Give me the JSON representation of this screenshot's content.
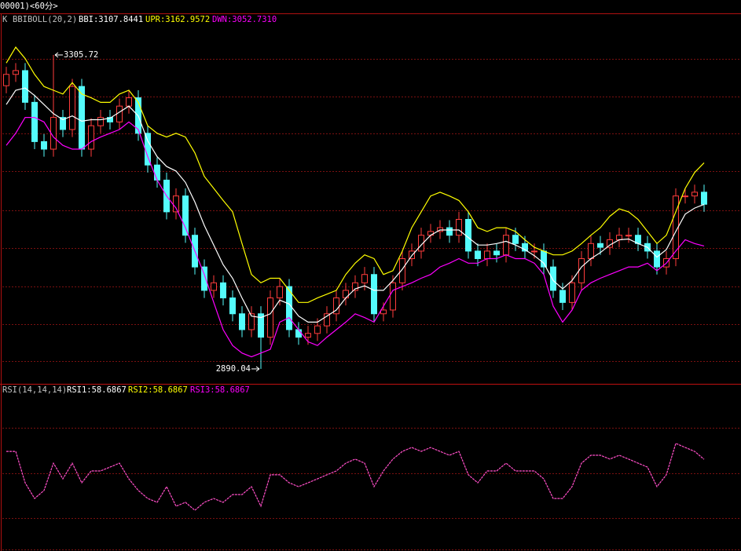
{
  "header": {
    "title": "00001)<60分>"
  },
  "chart_data": [
    {
      "type": "candlestick",
      "legend": [
        "K",
        "BBIBOLL(20,2)"
      ],
      "up_color": "#ff3c3c",
      "down_color": "#54fcfc",
      "open": [
        3265,
        3280,
        3285,
        3243,
        3191,
        3181,
        3223,
        3207,
        3264,
        3181,
        3212,
        3223,
        3217,
        3238,
        3249,
        3202,
        3160,
        3140,
        3098,
        3119,
        3067,
        3025,
        2994,
        3004,
        2984,
        2963,
        2942,
        2963,
        2932,
        2984,
        2999,
        2942,
        2932,
        2937,
        2947,
        2963,
        2984,
        2994,
        3004,
        3015,
        2963,
        2968,
        3004,
        3036,
        3046,
        3067,
        3072,
        3077,
        3067,
        3088,
        3046,
        3036,
        3046,
        3041,
        3067,
        3056,
        3046,
        3046,
        3025,
        2994,
        2978,
        3004,
        3036,
        3056,
        3051,
        3061,
        3067,
        3067,
        3056,
        3046,
        3025,
        3036,
        3119,
        3119,
        3124
      ],
      "high": [
        3290,
        3295,
        3295,
        3253,
        3201,
        3305.72,
        3233,
        3274,
        3274,
        3222,
        3233,
        3233,
        3248,
        3259,
        3259,
        3212,
        3170,
        3150,
        3129,
        3129,
        3077,
        3035,
        3014,
        3014,
        2994,
        2973,
        2973,
        2973,
        2994,
        3009,
        3009,
        2952,
        2947,
        2957,
        2973,
        2994,
        3004,
        3014,
        3025,
        3025,
        2978,
        3014,
        3046,
        3056,
        3077,
        3082,
        3087,
        3087,
        3098,
        3098,
        3056,
        3056,
        3056,
        3077,
        3077,
        3066,
        3056,
        3056,
        3035,
        3004,
        3014,
        3046,
        3066,
        3066,
        3071,
        3077,
        3077,
        3077,
        3066,
        3056,
        3046,
        3129,
        3129,
        3134,
        3134
      ],
      "low": [
        3255,
        3270,
        3233,
        3181,
        3171,
        3171,
        3197,
        3197,
        3171,
        3171,
        3202,
        3207,
        3207,
        3228,
        3192,
        3150,
        3130,
        3088,
        3088,
        3057,
        3015,
        2984,
        2984,
        2974,
        2953,
        2932,
        2932,
        2890.04,
        2922,
        2974,
        2932,
        2922,
        2922,
        2927,
        2937,
        2953,
        2974,
        2984,
        2994,
        2953,
        2953,
        2958,
        2994,
        3026,
        3036,
        3057,
        3062,
        3057,
        3057,
        3036,
        3026,
        3026,
        3031,
        3031,
        3046,
        3036,
        3036,
        3015,
        2984,
        2968,
        2968,
        2994,
        3026,
        3041,
        3041,
        3051,
        3057,
        3046,
        3036,
        3015,
        3015,
        3026,
        3109,
        3109,
        3098
      ],
      "close": [
        3280,
        3285,
        3243,
        3191,
        3181,
        3223,
        3207,
        3264,
        3181,
        3212,
        3223,
        3217,
        3238,
        3249,
        3202,
        3160,
        3140,
        3098,
        3119,
        3067,
        3025,
        2994,
        3004,
        2984,
        2963,
        2942,
        2963,
        2932,
        2984,
        2999,
        2942,
        2932,
        2937,
        2947,
        2963,
        2984,
        2994,
        3004,
        3015,
        2963,
        2968,
        3004,
        3036,
        3046,
        3067,
        3072,
        3077,
        3067,
        3088,
        3046,
        3036,
        3046,
        3041,
        3067,
        3056,
        3046,
        3046,
        3025,
        2994,
        2978,
        3004,
        3036,
        3056,
        3051,
        3061,
        3067,
        3067,
        3056,
        3046,
        3025,
        3036,
        3119,
        3119,
        3124,
        3108
      ],
      "series": [
        {
          "name": "BBI:",
          "color": "#ffffff",
          "values": [
            3240,
            3259,
            3262,
            3252,
            3240,
            3228,
            3220,
            3225,
            3218,
            3220,
            3220,
            3222,
            3230,
            3238,
            3225,
            3192,
            3171,
            3158,
            3152,
            3137,
            3111,
            3080,
            3054,
            3028,
            3010,
            2984,
            2960,
            2958,
            2963,
            2981,
            2976,
            2960,
            2952,
            2952,
            2960,
            2968,
            2984,
            2996,
            3000,
            2994,
            2994,
            3007,
            3022,
            3040,
            3054,
            3067,
            3074,
            3074,
            3074,
            3064,
            3054,
            3054,
            3056,
            3059,
            3054,
            3048,
            3040,
            3030,
            3007,
            2996,
            3007,
            3025,
            3036,
            3044,
            3054,
            3061,
            3062,
            3056,
            3051,
            3038,
            3048,
            3072,
            3095,
            3103,
            3107.8441
          ]
        },
        {
          "name": "UPR:",
          "color": "#ffff00",
          "values": [
            3295,
            3316,
            3301,
            3280,
            3264,
            3259,
            3254,
            3269,
            3254,
            3249,
            3243,
            3243,
            3254,
            3259,
            3243,
            3212,
            3202,
            3197,
            3202,
            3197,
            3176,
            3145,
            3129,
            3113,
            3098,
            3056,
            3015,
            3004,
            3010,
            3010,
            2994,
            2978,
            2978,
            2984,
            2989,
            2994,
            3015,
            3030,
            3041,
            3036,
            3015,
            3020,
            3046,
            3077,
            3098,
            3119,
            3124,
            3119,
            3113,
            3098,
            3077,
            3072,
            3077,
            3077,
            3072,
            3061,
            3051,
            3046,
            3041,
            3041,
            3046,
            3056,
            3067,
            3077,
            3092,
            3102,
            3098,
            3088,
            3072,
            3056,
            3067,
            3098,
            3129,
            3150,
            3162.9572
          ]
        },
        {
          "name": "DWN:",
          "color": "#ff00ff",
          "values": [
            3186,
            3202,
            3223,
            3223,
            3217,
            3197,
            3186,
            3181,
            3181,
            3191,
            3197,
            3202,
            3207,
            3217,
            3207,
            3171,
            3140,
            3119,
            3103,
            3077,
            3046,
            3015,
            2978,
            2942,
            2921,
            2911,
            2906,
            2911,
            2916,
            2952,
            2958,
            2942,
            2926,
            2921,
            2932,
            2942,
            2952,
            2963,
            2958,
            2952,
            2973,
            2994,
            2999,
            3004,
            3010,
            3015,
            3025,
            3030,
            3036,
            3030,
            3030,
            3036,
            3036,
            3041,
            3036,
            3036,
            3030,
            3015,
            2973,
            2952,
            2968,
            2994,
            3004,
            3010,
            3015,
            3020,
            3025,
            3025,
            3030,
            3020,
            3030,
            3046,
            3061,
            3056,
            3052.731
          ],
          "value_labels": [
            null,
            null,
            null,
            null,
            null,
            null,
            null,
            null,
            null,
            null,
            null,
            null,
            null,
            null,
            null,
            null,
            null,
            null,
            null,
            null,
            null,
            null,
            null,
            null,
            null,
            null,
            null,
            null,
            null,
            null,
            null,
            null,
            null,
            null,
            null,
            null,
            null,
            null,
            null,
            null,
            null,
            null,
            null,
            null,
            null,
            null,
            null,
            null,
            null,
            null,
            null,
            null,
            null,
            null,
            null,
            null,
            null,
            null,
            null,
            null,
            null,
            null,
            null,
            null,
            null,
            null,
            null,
            null,
            null,
            null,
            null,
            null,
            null,
            null,
            "3052.7310"
          ]
        }
      ],
      "ylim": [
        2871.3,
        3357.7
      ]
    },
    {
      "type": "line",
      "title": "RSI(14,14,14)",
      "series": [
        {
          "name": "RSI1:",
          "color": "#ff4fc8",
          "values": [
            63.6,
            63.6,
            44.2,
            34.5,
            39.4,
            56.3,
            46.6,
            56.3,
            44.2,
            51.5,
            51.5,
            53.9,
            56.3,
            46.6,
            39.4,
            34.5,
            32.1,
            41.8,
            29.7,
            32.1,
            27.2,
            32.1,
            34.5,
            32.1,
            36.9,
            36.9,
            41.8,
            29.7,
            49.1,
            49.1,
            44.2,
            41.8,
            44.2,
            46.6,
            49.1,
            51.5,
            56.3,
            58.8,
            56.3,
            41.8,
            51.5,
            58.8,
            63.6,
            66,
            63.6,
            66,
            63.6,
            61.2,
            63.6,
            49.1,
            44.2,
            51.5,
            51.5,
            56.3,
            51.5,
            51.5,
            51.5,
            46.6,
            34.5,
            34.5,
            41.8,
            56.3,
            61.2,
            61.2,
            58.8,
            61.2,
            58.8,
            56.3,
            53.9,
            41.8,
            49.1,
            68.5,
            66,
            63.6,
            58.6867
          ]
        }
      ],
      "extra": [
        {
          "name": "RSI2:",
          "value": 58.6867,
          "color": "#ffff00"
        },
        {
          "name": "RSI3:",
          "value": 58.6867,
          "color": "#ff00ff"
        }
      ],
      "ylim": [
        3,
        100
      ]
    }
  ]
}
